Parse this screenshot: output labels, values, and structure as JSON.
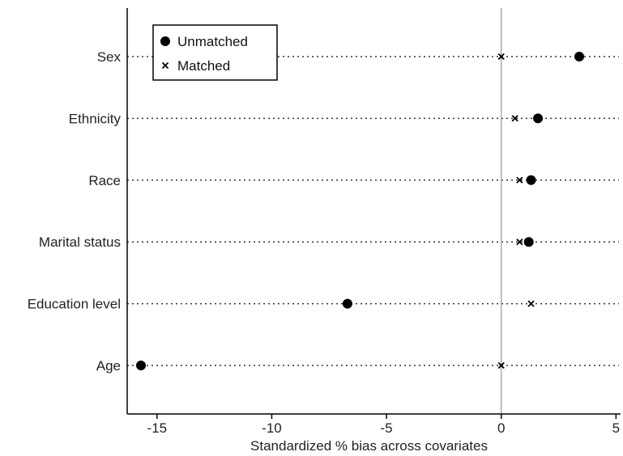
{
  "chart_data": {
    "type": "scatter",
    "title": "",
    "xlabel": "Standardized % bias across covariates",
    "ylabel": "",
    "xlim": [
      -16.3,
      5.2
    ],
    "xticks": [
      -15,
      -10,
      -5,
      0,
      5
    ],
    "xtick_labels": [
      "-15",
      "-10",
      "-5",
      "0",
      "5"
    ],
    "reference_line_x": 0,
    "categories": [
      "Sex",
      "Ethnicity",
      "Race",
      "Marital status",
      "Education level",
      "Age"
    ],
    "series": [
      {
        "name": "Unmatched",
        "marker": "circle",
        "values": [
          3.4,
          1.6,
          1.3,
          1.2,
          -6.7,
          -15.7
        ]
      },
      {
        "name": "Matched",
        "marker": "x",
        "values": [
          0.0,
          0.6,
          0.8,
          0.8,
          1.3,
          0.0
        ]
      }
    ],
    "legend_position": "top-left",
    "grid": "horizontal dotted lines per category",
    "colors": {
      "marker": "#000000",
      "gridline": "#333333",
      "refline": "#aaaaaa",
      "axis": "#000000"
    }
  }
}
